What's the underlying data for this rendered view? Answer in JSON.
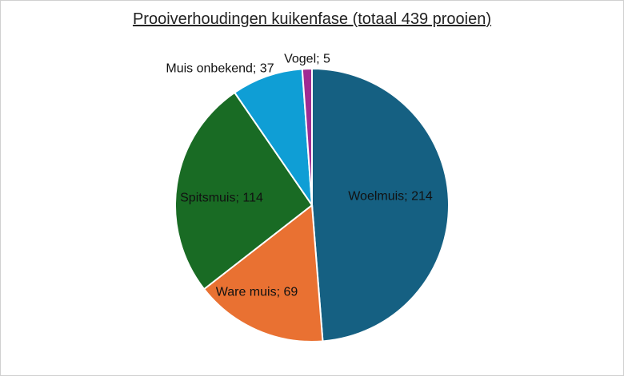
{
  "chart_data": {
    "type": "pie",
    "title": "Prooiverhoudingen kuikenfase (totaal 439 prooien)",
    "values": [
      214,
      69,
      114,
      37,
      5
    ],
    "value_labels": [
      "Woelmuis; 214",
      "Ware muis; 69",
      "Spitsmuis; 114",
      "Muis onbekend; 37",
      "Vogel; 5"
    ],
    "colors": [
      "#156082",
      "#e97132",
      "#196b24",
      "#0f9ed5",
      "#a02b93"
    ]
  }
}
